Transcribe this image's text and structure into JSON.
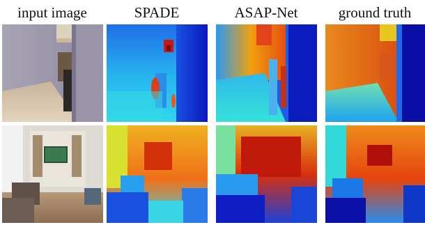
{
  "columns": [
    {
      "label": "input image"
    },
    {
      "label": "SPADE"
    },
    {
      "label": "ASAP-Net"
    },
    {
      "label": "ground truth"
    }
  ],
  "rows": [
    {
      "scene": "kitchen-corridor"
    },
    {
      "scene": "living-room"
    }
  ],
  "colors": {
    "depth_near": "#0a14c8",
    "depth_mid": "#28c8f0",
    "depth_far": "#d22a08",
    "background": "#ffffff"
  }
}
